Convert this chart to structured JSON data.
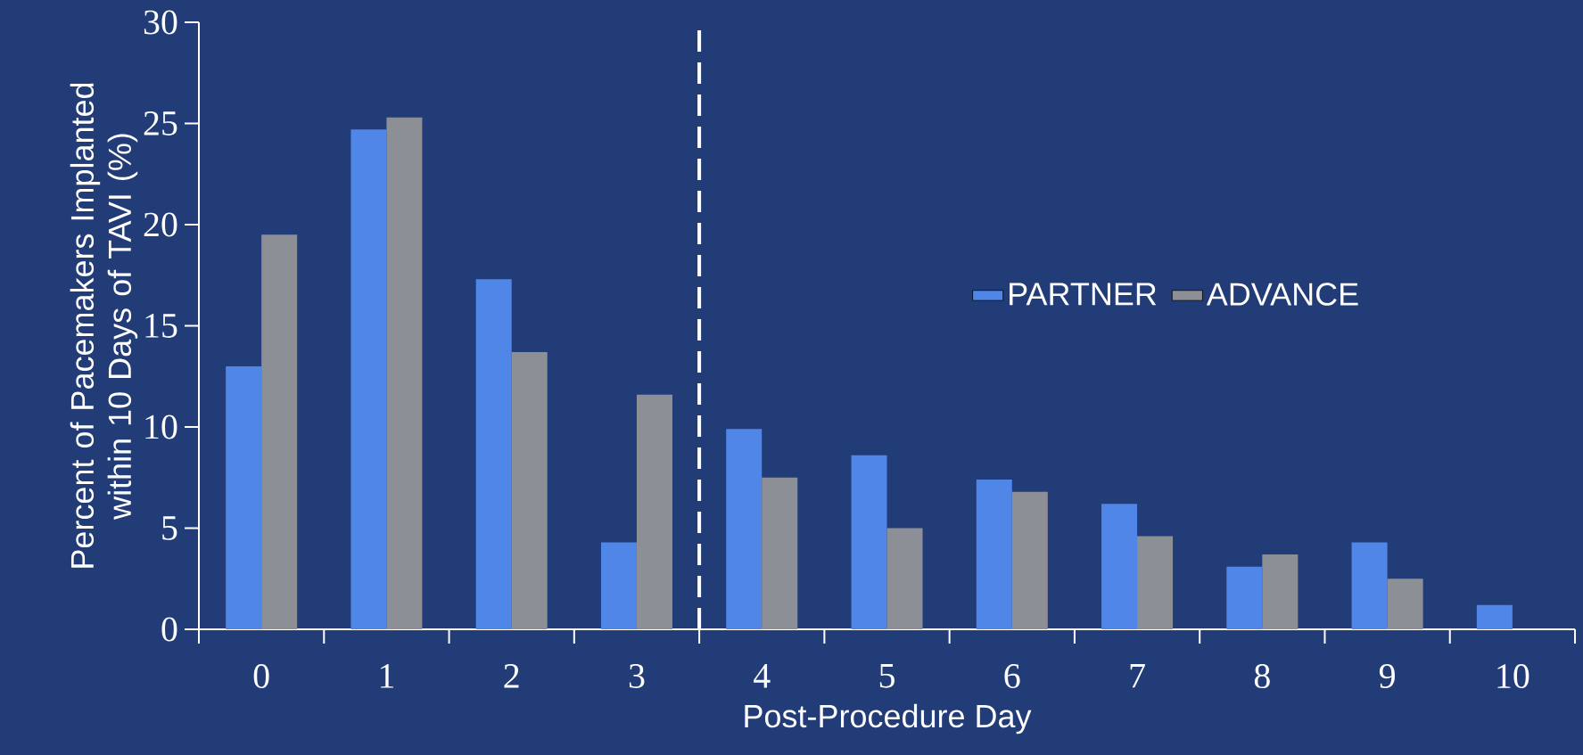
{
  "chart_data": {
    "type": "bar",
    "xlabel": "Post-Procedure Day",
    "ylabel": "Percent of Pacemakers Implanted within 10 Days of TAVI (%)",
    "categories": [
      "0",
      "1",
      "2",
      "3",
      "4",
      "5",
      "6",
      "7",
      "8",
      "9",
      "10"
    ],
    "series": [
      {
        "name": "PARTNER",
        "color": "#4f86e8",
        "values": [
          13.0,
          24.7,
          17.3,
          4.3,
          9.9,
          8.6,
          7.4,
          6.2,
          3.1,
          4.3,
          1.2
        ]
      },
      {
        "name": "ADVANCE",
        "color": "#8c8f96",
        "values": [
          19.5,
          25.3,
          13.7,
          11.6,
          7.5,
          5.0,
          6.8,
          4.6,
          3.7,
          2.5,
          null
        ]
      }
    ],
    "ylim": [
      0,
      30
    ],
    "yticks": [
      0,
      5,
      10,
      15,
      20,
      25,
      30
    ],
    "legend": "right"
  }
}
